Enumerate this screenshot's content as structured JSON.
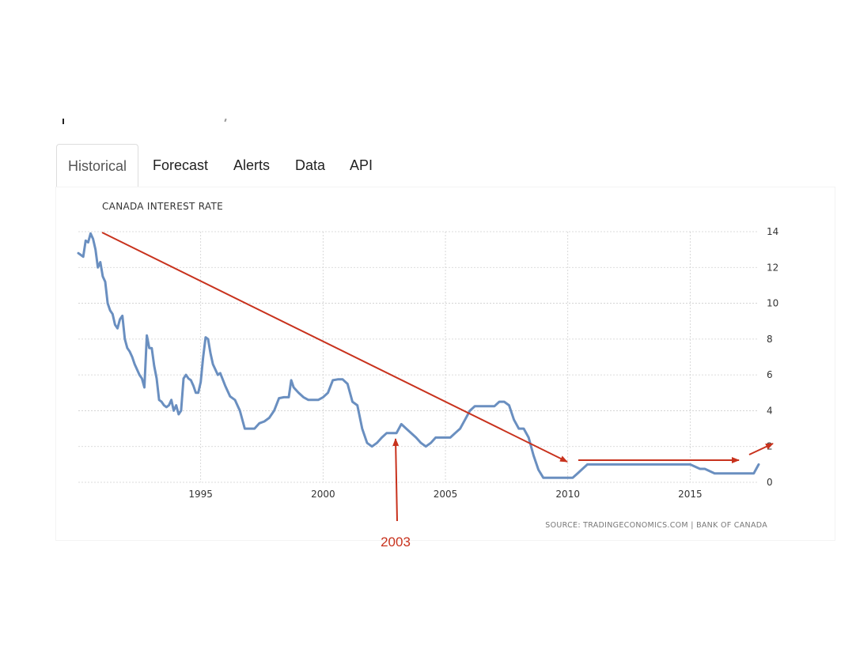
{
  "tabs": [
    {
      "label": "Historical",
      "active": true
    },
    {
      "label": "Forecast",
      "active": false
    },
    {
      "label": "Alerts",
      "active": false
    },
    {
      "label": "Data",
      "active": false
    },
    {
      "label": "API",
      "active": false
    }
  ],
  "colors": {
    "line": "#6a8fc0",
    "annotation": "#c8321d",
    "grid": "#cfcfcf"
  },
  "chart_data": {
    "type": "line",
    "title": "CANADA INTEREST RATE",
    "source": "SOURCE: TRADINGECONOMICS.COM | BANK OF CANADA",
    "xlabel": "",
    "ylabel": "",
    "xlim": [
      1990.0,
      2017.8
    ],
    "ylim": [
      0,
      14
    ],
    "x_ticks": [
      1995,
      2000,
      2005,
      2010,
      2015
    ],
    "y_ticks": [
      0,
      2,
      4,
      6,
      8,
      10,
      12,
      14
    ],
    "grid": true,
    "y_axis_side": "right",
    "series": [
      {
        "x": [
          1990.0,
          1990.1,
          1990.2,
          1990.3,
          1990.4,
          1990.5,
          1990.6,
          1990.7,
          1990.8,
          1990.9,
          1991.0,
          1991.1,
          1991.2,
          1991.3,
          1991.4,
          1991.5,
          1991.6,
          1991.7,
          1991.8,
          1991.9,
          1992.0,
          1992.1,
          1992.2,
          1992.3,
          1992.4,
          1992.5,
          1992.6,
          1992.7,
          1992.8,
          1992.9,
          1993.0,
          1993.1,
          1993.2,
          1993.3,
          1993.4,
          1993.5,
          1993.6,
          1993.7,
          1993.8,
          1993.9,
          1994.0,
          1994.1,
          1994.2,
          1994.3,
          1994.4,
          1994.5,
          1994.6,
          1994.7,
          1994.8,
          1994.9,
          1995.0,
          1995.1,
          1995.2,
          1995.3,
          1995.4,
          1995.5,
          1995.6,
          1995.7,
          1995.8,
          1996.0,
          1996.2,
          1996.4,
          1996.6,
          1996.8,
          1997.0,
          1997.2,
          1997.4,
          1997.6,
          1997.8,
          1998.0,
          1998.2,
          1998.4,
          1998.6,
          1998.7,
          1998.8,
          1999.0,
          1999.2,
          1999.4,
          1999.6,
          1999.8,
          2000.0,
          2000.2,
          2000.4,
          2000.6,
          2000.8,
          2001.0,
          2001.2,
          2001.4,
          2001.6,
          2001.8,
          2002.0,
          2002.2,
          2002.4,
          2002.6,
          2002.8,
          2003.0,
          2003.2,
          2003.4,
          2003.6,
          2003.8,
          2004.0,
          2004.2,
          2004.4,
          2004.6,
          2004.8,
          2005.0,
          2005.2,
          2005.4,
          2005.6,
          2005.8,
          2006.0,
          2006.2,
          2006.4,
          2006.6,
          2006.8,
          2007.0,
          2007.2,
          2007.4,
          2007.6,
          2007.8,
          2008.0,
          2008.2,
          2008.4,
          2008.6,
          2008.8,
          2009.0,
          2009.2,
          2009.4,
          2009.6,
          2009.8,
          2010.0,
          2010.2,
          2010.4,
          2010.6,
          2010.8,
          2011.0,
          2012.0,
          2013.0,
          2014.0,
          2015.0,
          2015.4,
          2015.6,
          2016.0,
          2017.0,
          2017.5,
          2017.6,
          2017.7,
          2017.8
        ],
        "values": [
          12.8,
          12.7,
          12.6,
          13.5,
          13.4,
          13.9,
          13.6,
          13.0,
          12.0,
          12.3,
          11.5,
          11.2,
          10.0,
          9.6,
          9.4,
          8.8,
          8.6,
          9.1,
          9.3,
          8.0,
          7.5,
          7.3,
          7.0,
          6.6,
          6.3,
          6.0,
          5.8,
          5.3,
          8.2,
          7.5,
          7.5,
          6.5,
          5.8,
          4.6,
          4.5,
          4.3,
          4.2,
          4.3,
          4.6,
          4.0,
          4.3,
          3.8,
          4.0,
          5.8,
          6.0,
          5.8,
          5.7,
          5.4,
          5.0,
          5.0,
          5.6,
          7.0,
          8.1,
          8.0,
          7.2,
          6.6,
          6.3,
          6.0,
          6.1,
          5.4,
          4.8,
          4.6,
          4.0,
          3.0,
          3.0,
          3.0,
          3.3,
          3.4,
          3.6,
          4.0,
          4.7,
          4.75,
          4.75,
          5.7,
          5.3,
          5.0,
          4.75,
          4.6,
          4.6,
          4.6,
          4.75,
          5.0,
          5.7,
          5.75,
          5.75,
          5.5,
          4.5,
          4.3,
          3.0,
          2.2,
          2.0,
          2.2,
          2.5,
          2.75,
          2.75,
          2.75,
          3.25,
          3.0,
          2.75,
          2.5,
          2.2,
          2.0,
          2.2,
          2.5,
          2.5,
          2.5,
          2.5,
          2.75,
          3.0,
          3.5,
          4.0,
          4.25,
          4.25,
          4.25,
          4.25,
          4.25,
          4.5,
          4.5,
          4.3,
          3.5,
          3.0,
          3.0,
          2.5,
          1.5,
          0.7,
          0.25,
          0.25,
          0.25,
          0.25,
          0.25,
          0.25,
          0.25,
          0.5,
          0.75,
          1.0,
          1.0,
          1.0,
          1.0,
          1.0,
          1.0,
          0.75,
          0.75,
          0.5,
          0.5,
          0.5,
          0.5,
          0.75,
          1.0
        ]
      }
    ]
  },
  "annotations": [
    {
      "label": "2003"
    }
  ]
}
